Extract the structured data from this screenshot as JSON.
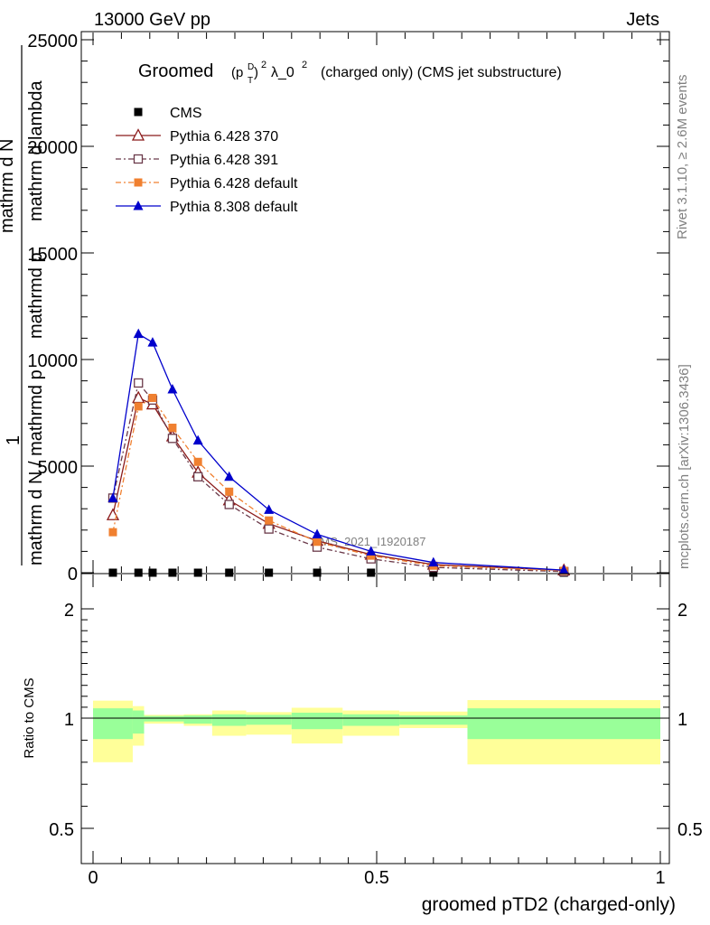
{
  "header": {
    "energy_label": "13000 GeV pp",
    "category_label": "Jets",
    "rivet_label": "Rivet 3.1.10, ≥ 2.6M events",
    "mcplots_label": "mcplots.cern.ch [arXiv:1306.3436]",
    "watermark": "CMS_2021_I1920187"
  },
  "chart_data": [
    {
      "type": "line",
      "title_main": "Groomed",
      "title_formula": "(p",
      "title_rest": "λ_0",
      "title_tail": "(charged only) (CMS jet substructure)",
      "title_sub_T": "T",
      "title_sup_D": "D",
      "title_sup_2": "2",
      "ylabel_parts": [
        "1",
        "mathrm d N / mathrmd p",
        "T",
        " mathrmd p",
        "T",
        " mathrm d lambda",
        "mathrm d",
        "2",
        "N"
      ],
      "ylabel_top": "mathrm d N",
      "ylabel_sup": "2",
      "ylabel_mid": "mathrmd p",
      "ylabel_mid_sub": "T",
      "ylabel_mid2": " mathrmd p",
      "ylabel_mid2_sub": "T",
      "ylabel_end": " mathrm d lambda",
      "ylabel_bottom": "mathrm d N / mathrmd p",
      "ylabel_bottom_sub": "T",
      "ylabel_one": "1",
      "ylim": [
        0,
        25000
      ],
      "yticks": [
        0,
        5000,
        10000,
        15000,
        20000,
        25000
      ],
      "ytick_labels": [
        "0",
        "5000",
        "10000",
        "15000",
        "20000",
        "25000"
      ],
      "xlim": [
        0,
        1
      ],
      "x": [
        0.035,
        0.08,
        0.105,
        0.14,
        0.185,
        0.24,
        0.31,
        0.395,
        0.49,
        0.6,
        0.83
      ],
      "series": [
        {
          "name": "CMS",
          "marker": "square",
          "color": "#000000",
          "dash": "",
          "values": [
            0,
            0,
            0,
            0,
            0,
            0,
            0,
            0,
            0,
            0,
            0
          ]
        },
        {
          "name": "Pythia 6.428 370",
          "marker": "triangle-open",
          "color": "#8b1a1a",
          "dash": "",
          "values": [
            2700,
            8200,
            7900,
            6400,
            4700,
            3400,
            2300,
            1500,
            850,
            380,
            110
          ]
        },
        {
          "name": "Pythia 6.428 391",
          "marker": "square-open",
          "color": "#6b3a4a",
          "dash": "6,3,2,3",
          "values": [
            3500,
            8900,
            8100,
            6300,
            4500,
            3200,
            2050,
            1200,
            650,
            250,
            50
          ]
        },
        {
          "name": "Pythia 6.428 default",
          "marker": "square",
          "color": "#f08030",
          "dash": "6,3,2,3",
          "values": [
            1900,
            7800,
            8200,
            6800,
            5200,
            3800,
            2450,
            1450,
            800,
            330,
            90
          ]
        },
        {
          "name": "Pythia 8.308 default",
          "marker": "triangle",
          "color": "#0000cc",
          "dash": "",
          "values": [
            3500,
            11200,
            10800,
            8600,
            6200,
            4500,
            2950,
            1800,
            1000,
            480,
            120
          ]
        }
      ]
    },
    {
      "type": "area",
      "ylabel": "Ratio to CMS",
      "ylim": [
        0.42,
        2.3
      ],
      "yticks": [
        0.5,
        1,
        2
      ],
      "ytick_labels": [
        "0.5",
        "1",
        "2"
      ],
      "xlim": [
        0,
        1
      ],
      "xticks": [
        0,
        0.5,
        1
      ],
      "xtick_labels": [
        "0",
        "0.5",
        "1"
      ],
      "xlabel": "groomed pTD2 (charged-only)",
      "bins": [
        {
          "lo": 0.0,
          "hi": 0.07,
          "stat": [
            0.905,
            1.09
          ],
          "total": [
            0.8,
            1.16
          ]
        },
        {
          "lo": 0.07,
          "hi": 0.09,
          "stat": [
            0.93,
            1.07
          ],
          "total": [
            0.875,
            1.11
          ]
        },
        {
          "lo": 0.09,
          "hi": 0.16,
          "stat": [
            0.985,
            1.02
          ],
          "total": [
            0.975,
            1.03
          ]
        },
        {
          "lo": 0.16,
          "hi": 0.21,
          "stat": [
            0.975,
            1.025
          ],
          "total": [
            0.965,
            1.035
          ]
        },
        {
          "lo": 0.21,
          "hi": 0.27,
          "stat": [
            0.965,
            1.035
          ],
          "total": [
            0.92,
            1.07
          ]
        },
        {
          "lo": 0.27,
          "hi": 0.35,
          "stat": [
            0.97,
            1.03
          ],
          "total": [
            0.925,
            1.055
          ]
        },
        {
          "lo": 0.35,
          "hi": 0.44,
          "stat": [
            0.95,
            1.05
          ],
          "total": [
            0.885,
            1.095
          ]
        },
        {
          "lo": 0.44,
          "hi": 0.54,
          "stat": [
            0.965,
            1.035
          ],
          "total": [
            0.92,
            1.07
          ]
        },
        {
          "lo": 0.54,
          "hi": 0.66,
          "stat": [
            0.97,
            1.025
          ],
          "total": [
            0.955,
            1.06
          ]
        },
        {
          "lo": 0.66,
          "hi": 1.0,
          "stat": [
            0.905,
            1.09
          ],
          "total": [
            0.79,
            1.165
          ]
        }
      ],
      "ref_line": 1,
      "stat_color": "#99ff99",
      "total_color": "#ffff99"
    }
  ]
}
